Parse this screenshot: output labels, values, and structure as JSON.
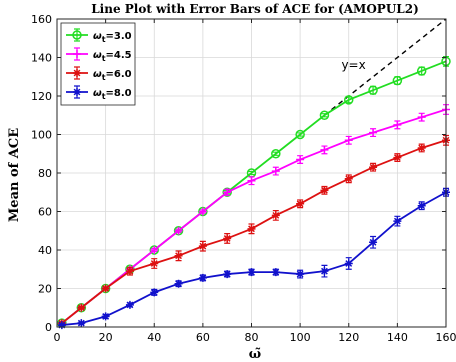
{
  "chart_data": {
    "type": "line",
    "title": "Line Plot with Error Bars of ACE for (AMOPUL2)",
    "xlabel": "ω̃",
    "ylabel": "Mean of ACE",
    "xlim": [
      0,
      160
    ],
    "ylim": [
      0,
      160
    ],
    "xticks": [
      "0",
      "20",
      "40",
      "60",
      "80",
      "100",
      "120",
      "140",
      "160"
    ],
    "yticks": [
      "0",
      "20",
      "40",
      "60",
      "80",
      "100",
      "120",
      "140",
      "160"
    ],
    "grid": true,
    "legend_position": "top-left",
    "reference_line": {
      "label": "y=x",
      "style": "dashed",
      "color": "#000000",
      "from": [
        110,
        110
      ],
      "to": [
        160,
        160
      ]
    },
    "series": [
      {
        "name_prefix": "ω",
        "name_sub": "t",
        "name_suffix": "=3.0",
        "color": "#22dd22",
        "marker": "circle",
        "x": [
          2,
          10,
          20,
          30,
          40,
          50,
          60,
          70,
          80,
          90,
          100,
          110,
          120,
          130,
          140,
          150,
          160
        ],
        "y": [
          2,
          10,
          20,
          30,
          40,
          50,
          60,
          70,
          80,
          90,
          100,
          110,
          118,
          123,
          128,
          133,
          138
        ],
        "err": [
          0.5,
          0.6,
          0.7,
          0.8,
          0.8,
          0.8,
          0.8,
          0.8,
          0.8,
          0.8,
          0.8,
          0.8,
          1.5,
          2,
          2,
          2,
          2.5
        ]
      },
      {
        "name_prefix": "ω",
        "name_sub": "t",
        "name_suffix": "=4.5",
        "color": "#ff00ff",
        "marker": "plus",
        "x": [
          2,
          10,
          20,
          30,
          40,
          50,
          60,
          70,
          80,
          90,
          100,
          110,
          120,
          130,
          140,
          150,
          160
        ],
        "y": [
          2,
          10,
          20,
          30,
          40,
          50,
          60,
          70,
          76,
          81,
          87,
          92,
          97,
          101,
          105,
          109,
          113
        ],
        "err": [
          0.5,
          0.6,
          0.7,
          0.8,
          0.8,
          0.8,
          0.8,
          1.5,
          2,
          2,
          2,
          2,
          2,
          2,
          2,
          2,
          2.5
        ]
      },
      {
        "name_prefix": "ω",
        "name_sub": "t",
        "name_suffix": "=6.0",
        "color": "#dd1111",
        "marker": "asterisk",
        "x": [
          2,
          10,
          20,
          30,
          40,
          50,
          60,
          70,
          80,
          90,
          100,
          110,
          120,
          130,
          140,
          150,
          160
        ],
        "y": [
          2,
          10,
          20,
          29,
          33,
          37,
          42,
          46,
          51,
          58,
          64,
          71,
          77,
          83,
          88,
          93,
          97
        ],
        "err": [
          0.5,
          0.6,
          0.8,
          2,
          2.5,
          2.5,
          2.5,
          2.5,
          2.5,
          2.5,
          2,
          2,
          2,
          2,
          2,
          2,
          2.5
        ]
      },
      {
        "name_prefix": "ω",
        "name_sub": "t",
        "name_suffix": "=8.0",
        "color": "#1111cc",
        "marker": "asterisk",
        "x": [
          2,
          10,
          20,
          30,
          40,
          50,
          60,
          70,
          80,
          90,
          100,
          110,
          120,
          130,
          140,
          150,
          160
        ],
        "y": [
          1,
          2,
          5.5,
          11.5,
          18,
          22.5,
          25.5,
          27.5,
          28.5,
          28.5,
          27.5,
          29,
          33,
          44,
          55,
          63,
          70
        ],
        "err": [
          0.3,
          0.5,
          1,
          1,
          1.5,
          1.5,
          1.5,
          1.5,
          1.5,
          1.5,
          2,
          3,
          3,
          3,
          2.5,
          2,
          2
        ]
      }
    ]
  }
}
